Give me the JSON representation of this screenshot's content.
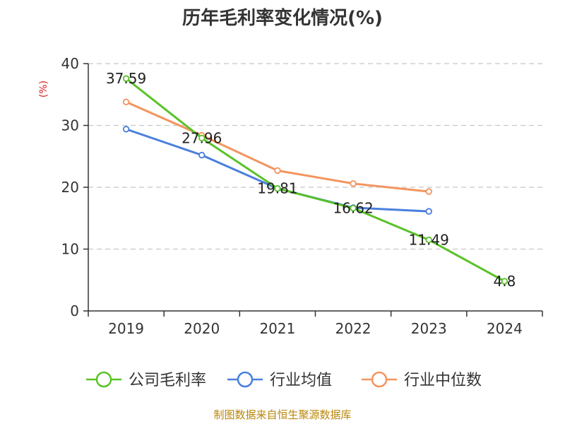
{
  "chart_data": {
    "type": "line",
    "title": "历年毛利率变化情况(%)",
    "ylabel": "(%)",
    "ylim": [
      0,
      40
    ],
    "yticks": [
      0,
      10,
      20,
      30,
      40
    ],
    "categories": [
      "2019",
      "2020",
      "2021",
      "2022",
      "2023",
      "2024"
    ],
    "grid": true,
    "legend_position": "bottom",
    "series": [
      {
        "name": "公司毛利率",
        "color": "#5ac229",
        "values": [
          37.59,
          27.96,
          19.81,
          16.62,
          11.49,
          4.8
        ],
        "labels": [
          "37.59",
          "27.96",
          "19.81",
          "16.62",
          "11.49",
          "4.8"
        ]
      },
      {
        "name": "行业均值",
        "color": "#4a7fdd",
        "values": [
          29.4,
          25.2,
          19.8,
          16.7,
          16.1,
          null
        ]
      },
      {
        "name": "行业中位数",
        "color": "#f39560",
        "values": [
          33.8,
          28.4,
          22.7,
          20.6,
          19.3,
          null
        ]
      }
    ],
    "source": "制图数据来自恒生聚源数据库",
    "unit_color": "#dd2222",
    "source_color": "#b8860b"
  }
}
